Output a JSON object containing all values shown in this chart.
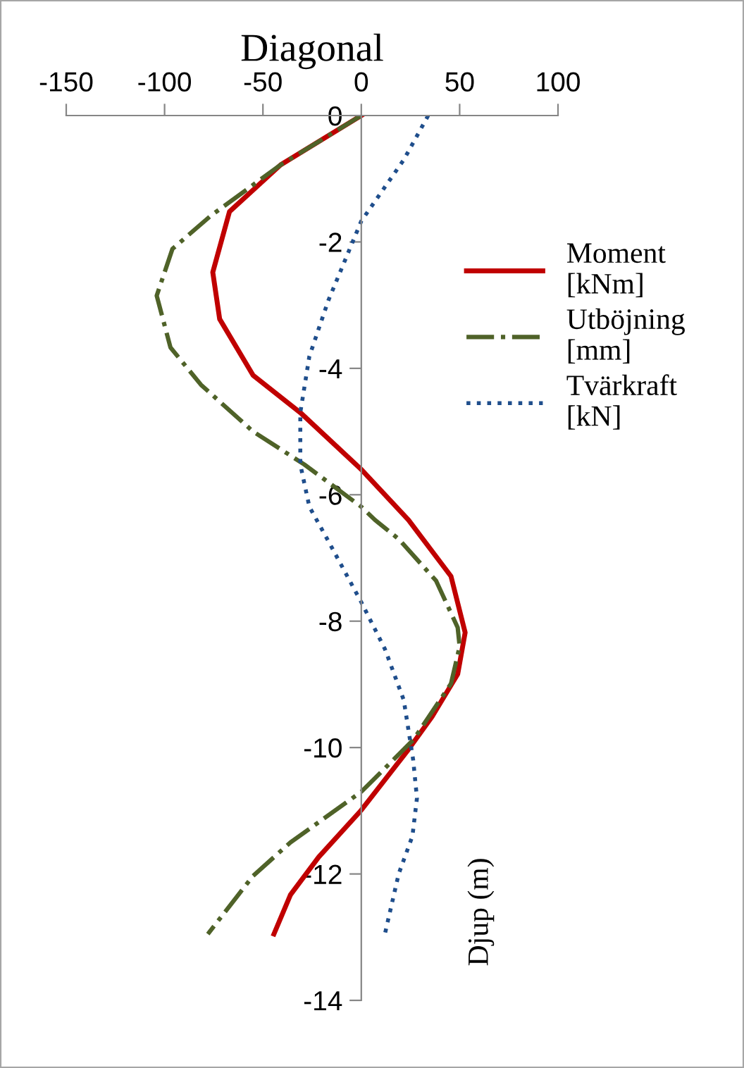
{
  "chart_data": {
    "type": "line",
    "title": "Diagonal",
    "ylabel": "Djup (m)",
    "xlim": [
      -150,
      100
    ],
    "xticks": [
      -150,
      -100,
      -50,
      0,
      50,
      100
    ],
    "ylim": [
      -14,
      0
    ],
    "yticks": [
      -14,
      -12,
      -10,
      -8,
      -6,
      -4,
      -2,
      0
    ],
    "grid": false,
    "legend": "right",
    "marker": "none",
    "series": [
      {
        "name": "Moment [kNm]",
        "color": "#c00000",
        "line_style": "solid",
        "x": [
          0,
          -41,
          -67,
          -75.5,
          -72,
          -55,
          -31,
          0,
          24,
          45.6,
          52.8,
          49,
          36,
          24,
          0,
          -21.6,
          -36,
          -44.4
        ],
        "values": [
          0,
          -0.78,
          -1.52,
          -2.48,
          -3.22,
          -4.11,
          -4.7,
          -5.6,
          -6.4,
          -7.29,
          -8.18,
          -8.84,
          -9.51,
          -10.03,
          -10.99,
          -11.73,
          -12.33,
          -12.95
        ]
      },
      {
        "name": "Utböjning [mm]",
        "color": "#4f6228",
        "line_style": "dashdot",
        "x": [
          0,
          -41,
          -76.7,
          -96,
          -104,
          -97,
          -81.5,
          -55,
          -29,
          0,
          7,
          19,
          38,
          49,
          50,
          45.6,
          26.4,
          0,
          -36,
          -55,
          -78
        ],
        "values": [
          0,
          -0.78,
          -1.59,
          -2.11,
          -2.85,
          -3.67,
          -4.26,
          -5,
          -5.52,
          -6.19,
          -6.4,
          -6.7,
          -7.36,
          -8.1,
          -8.4,
          -8.99,
          -9.88,
          -10.7,
          -11.5,
          -12.03,
          -12.95
        ]
      },
      {
        "name": "Tvärkraft [kN]",
        "color": "#1f4e8c",
        "line_style": "dotted",
        "x": [
          34,
          21.6,
          0,
          -16.8,
          -26.4,
          -31,
          -31,
          -26.4,
          -16.8,
          0,
          12,
          21.6,
          26.4,
          28.3,
          26,
          19,
          12
        ],
        "values": [
          0,
          -0.7,
          -1.67,
          -2.93,
          -3.81,
          -4.7,
          -5.52,
          -6.19,
          -6.73,
          -7.7,
          -8.44,
          -9.25,
          -10.2,
          -10.8,
          -11.4,
          -12.0,
          -12.95
        ]
      }
    ]
  }
}
